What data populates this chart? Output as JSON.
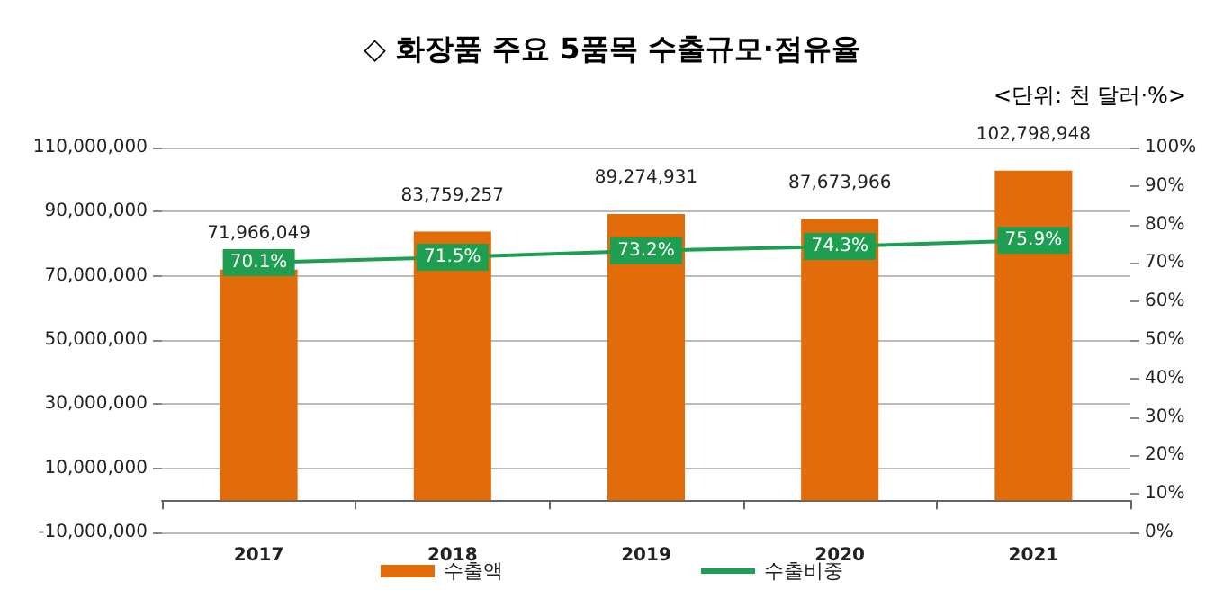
{
  "chart_data": {
    "type": "bar",
    "title": "◇ 화장품 주요 5품목 수출규모·점유율",
    "subtitle": "<단위: 천 달러·%>",
    "categories": [
      "2017",
      "2018",
      "2019",
      "2020",
      "2021"
    ],
    "series": [
      {
        "name": "수출액",
        "color": "#e36c0a",
        "values": [
          71966049,
          83759257,
          89274931,
          87673966,
          102798948
        ],
        "value_labels": [
          "71,966,049",
          "83,759,257",
          "89,274,931",
          "87,673,966",
          "102,798,948"
        ]
      },
      {
        "name": "수출비중",
        "type": "line",
        "axis": "y2",
        "color": "#1e9e50",
        "marker": "square",
        "values": [
          70.1,
          71.5,
          73.2,
          74.3,
          75.9
        ],
        "value_labels": [
          "70.1%",
          "71.5%",
          "73.2%",
          "74.3%",
          "75.9%"
        ]
      }
    ],
    "ylim": [
      -10000000,
      110000000
    ],
    "yticks": [
      {
        "value": -10000000,
        "label": "-10,000,000"
      },
      {
        "value": 10000000,
        "label": "10,000,000"
      },
      {
        "value": 30000000,
        "label": "30,000,000"
      },
      {
        "value": 50000000,
        "label": "50,000,000"
      },
      {
        "value": 70000000,
        "label": "70,000,000"
      },
      {
        "value": 90000000,
        "label": "90,000,000"
      },
      {
        "value": 110000000,
        "label": "110,000,000"
      }
    ],
    "y2lim": [
      0,
      100
    ],
    "y2ticks": [
      {
        "value": 0,
        "label": "0%"
      },
      {
        "value": 10,
        "label": "10%"
      },
      {
        "value": 20,
        "label": "20%"
      },
      {
        "value": 30,
        "label": "30%"
      },
      {
        "value": 40,
        "label": "40%"
      },
      {
        "value": 50,
        "label": "50%"
      },
      {
        "value": 60,
        "label": "60%"
      },
      {
        "value": 70,
        "label": "70%"
      },
      {
        "value": 80,
        "label": "80%"
      },
      {
        "value": 90,
        "label": "90%"
      },
      {
        "value": 100,
        "label": "100%"
      }
    ],
    "grid": "y",
    "legend": "bottom",
    "line_style": "solid"
  }
}
